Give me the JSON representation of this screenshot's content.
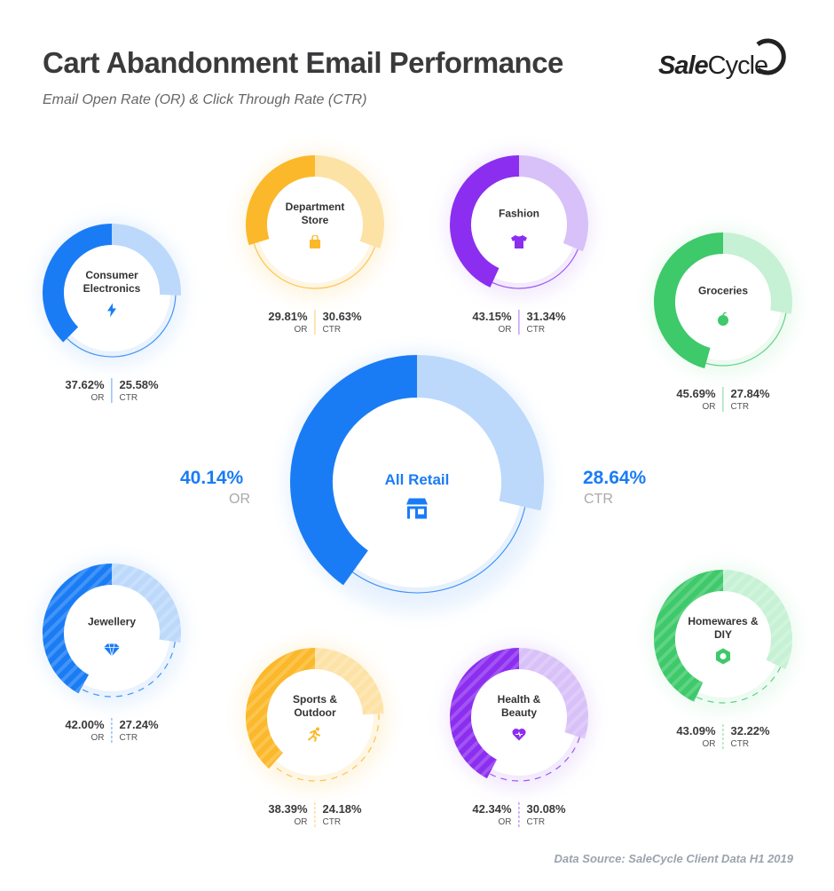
{
  "header": {
    "title": "Cart Abandonment Email Performance",
    "subtitle": "Email Open Rate (OR) & Click Through Rate (CTR)",
    "logo": "SaleCycle"
  },
  "footer": {
    "source": "Data Source: SaleCycle Client Data H1 2019"
  },
  "chart_data": {
    "type": "donut-pair",
    "metric_labels": {
      "or": "OR",
      "ctr": "CTR"
    },
    "overall": {
      "name": "All Retail",
      "or": 40.14,
      "ctr": 28.64,
      "or_text": "40.14%",
      "ctr_text": "28.64%",
      "icon": "store-icon",
      "color": "#1a7cf5",
      "light": "#bcd9fb"
    },
    "categories": [
      {
        "id": "ce",
        "name": "Consumer Electronics",
        "or": 37.62,
        "ctr": 25.58,
        "or_text": "37.62%",
        "ctr_text": "25.58%",
        "icon": "lightning-icon",
        "color": "#1a7cf5",
        "light": "#bcd9fb"
      },
      {
        "id": "ds",
        "name": "Department Store",
        "or": 29.81,
        "ctr": 30.63,
        "or_text": "29.81%",
        "ctr_text": "30.63%",
        "icon": "shopping-bag-icon",
        "color": "#fbb82a",
        "light": "#fde2a6"
      },
      {
        "id": "fa",
        "name": "Fashion",
        "or": 43.15,
        "ctr": 31.34,
        "or_text": "43.15%",
        "ctr_text": "31.34%",
        "icon": "t-shirt-icon",
        "color": "#8c2ef0",
        "light": "#d8c1f8"
      },
      {
        "id": "gr",
        "name": "Groceries",
        "or": 45.69,
        "ctr": 27.84,
        "or_text": "45.69%",
        "ctr_text": "27.84%",
        "icon": "apple-icon",
        "color": "#3ec96a",
        "light": "#c6f1d4"
      },
      {
        "id": "je",
        "name": "Jewellery",
        "or": 42.0,
        "ctr": 27.24,
        "or_text": "42.00%",
        "ctr_text": "27.24%",
        "icon": "diamond-icon",
        "color": "#1a7cf5",
        "light": "#bcd9fb"
      },
      {
        "id": "so",
        "name": "Sports & Outdoor",
        "or": 38.39,
        "ctr": 24.18,
        "or_text": "38.39%",
        "ctr_text": "24.18%",
        "icon": "runner-icon",
        "color": "#fbb82a",
        "light": "#fde2a6"
      },
      {
        "id": "hb",
        "name": "Health & Beauty",
        "or": 42.34,
        "ctr": 30.08,
        "or_text": "42.34%",
        "ctr_text": "30.08%",
        "icon": "heart-icon",
        "color": "#8c2ef0",
        "light": "#d8c1f8"
      },
      {
        "id": "hd",
        "name": "Homewares & DIY",
        "or": 43.09,
        "ctr": 32.22,
        "or_text": "43.09%",
        "ctr_text": "32.22%",
        "icon": "hex-nut-icon",
        "color": "#3ec96a",
        "light": "#c6f1d4"
      }
    ]
  }
}
